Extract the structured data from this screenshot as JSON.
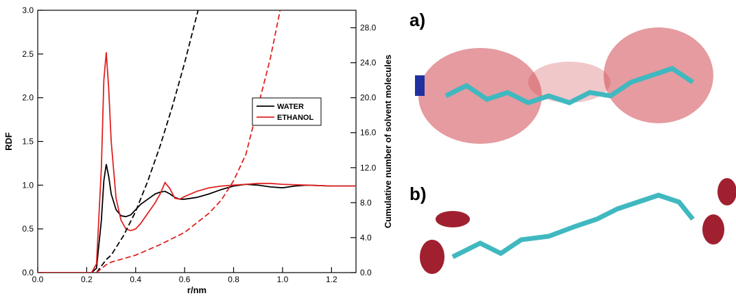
{
  "chart_data": {
    "type": "line",
    "xlabel": "r/nm",
    "ylabel": "RDF",
    "y2label": "Cumulative number of solvent molecules",
    "xlim": [
      0,
      1.3
    ],
    "ylim": [
      0,
      3
    ],
    "y2lim": [
      0,
      30
    ],
    "xticks": [
      {
        "value": 0,
        "label": "0.0"
      },
      0.2,
      0.4,
      0.6,
      0.8,
      {
        "value": 1,
        "label": "1.0"
      },
      1.2
    ],
    "yticks": [
      {
        "value": 0,
        "label": "0.0"
      },
      0.5,
      {
        "value": 1,
        "label": "1.0"
      },
      1.5,
      {
        "value": 2,
        "label": "2.0"
      },
      2.5,
      {
        "value": 3,
        "label": "3.0"
      }
    ],
    "y2ticks": [
      {
        "value": 0,
        "label": "0.0"
      },
      {
        "value": 4,
        "label": "4.0"
      },
      {
        "value": 8,
        "label": "8.0"
      },
      {
        "value": 12,
        "label": "12.0"
      },
      {
        "value": 16,
        "label": "16.0"
      },
      {
        "value": 20,
        "label": "20.0"
      },
      {
        "value": 24,
        "label": "24.0"
      },
      {
        "value": 28,
        "label": "28.0"
      }
    ],
    "series": [
      {
        "name": "WATER",
        "color": "#000000",
        "dash": false,
        "x": [
          0,
          0.22,
          0.24,
          0.26,
          0.27,
          0.28,
          0.29,
          0.3,
          0.32,
          0.34,
          0.36,
          0.38,
          0.4,
          0.42,
          0.44,
          0.46,
          0.48,
          0.5,
          0.52,
          0.54,
          0.56,
          0.58,
          0.6,
          0.65,
          0.7,
          0.75,
          0.8,
          0.85,
          0.9,
          0.95,
          1.0,
          1.05,
          1.1,
          1.2,
          1.3
        ],
        "values": [
          0,
          0,
          0.05,
          0.6,
          1.05,
          1.24,
          1.1,
          0.9,
          0.72,
          0.65,
          0.64,
          0.66,
          0.72,
          0.78,
          0.82,
          0.86,
          0.9,
          0.92,
          0.93,
          0.9,
          0.86,
          0.84,
          0.84,
          0.86,
          0.9,
          0.95,
          0.99,
          1.01,
          1.0,
          0.98,
          0.97,
          0.99,
          1.0,
          0.99,
          0.99
        ]
      },
      {
        "name": "ETHANOL",
        "color": "#e02020",
        "dash": false,
        "x": [
          0,
          0.22,
          0.24,
          0.26,
          0.27,
          0.28,
          0.29,
          0.3,
          0.32,
          0.34,
          0.36,
          0.38,
          0.4,
          0.42,
          0.44,
          0.46,
          0.48,
          0.5,
          0.52,
          0.54,
          0.56,
          0.58,
          0.6,
          0.65,
          0.7,
          0.75,
          0.8,
          0.85,
          0.9,
          0.95,
          1.0,
          1.1,
          1.2,
          1.3
        ],
        "values": [
          0,
          0,
          0.1,
          1.2,
          2.2,
          2.52,
          2.1,
          1.5,
          0.85,
          0.6,
          0.5,
          0.48,
          0.5,
          0.56,
          0.64,
          0.72,
          0.8,
          0.9,
          1.03,
          0.96,
          0.85,
          0.84,
          0.87,
          0.93,
          0.97,
          0.99,
          1.0,
          1.01,
          1.02,
          1.02,
          1.01,
          1.0,
          0.99,
          0.99
        ]
      },
      {
        "color": "#000000",
        "dash": true,
        "axis": "y2",
        "x": [
          0.24,
          0.28,
          0.3,
          0.35,
          0.4,
          0.45,
          0.5,
          0.55,
          0.6,
          0.655
        ],
        "values": [
          0,
          1.5,
          2.0,
          4.2,
          7.0,
          10.5,
          14.5,
          19.0,
          24.0,
          30
        ]
      },
      {
        "color": "#e02020",
        "dash": true,
        "axis": "y2",
        "x": [
          0.24,
          0.28,
          0.3,
          0.4,
          0.5,
          0.6,
          0.7,
          0.75,
          0.8,
          0.85,
          0.9,
          0.95,
          0.99
        ],
        "values": [
          0,
          0.9,
          1.2,
          2.0,
          3.2,
          4.6,
          6.8,
          8.3,
          10.5,
          13.5,
          19,
          24.5,
          30
        ]
      }
    ]
  },
  "panels": {
    "a": "a)",
    "b": "b)"
  }
}
